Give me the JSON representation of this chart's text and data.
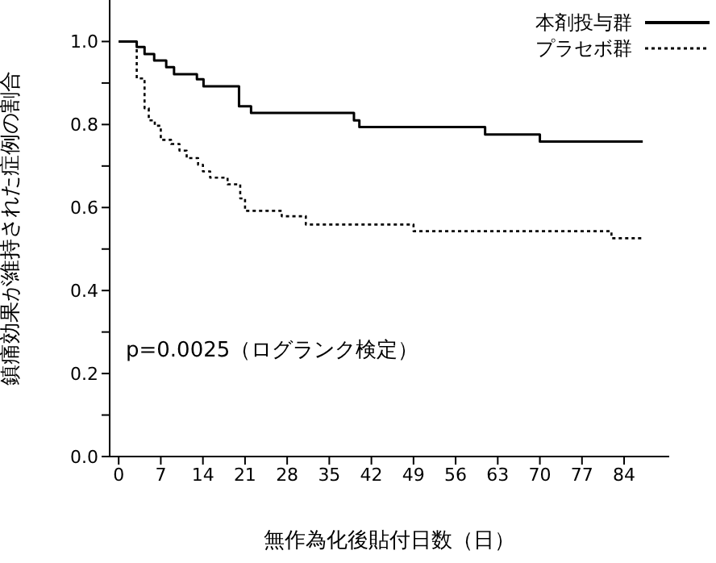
{
  "chart_data": {
    "type": "step",
    "xlabel": "無作為化後貼付日数（日）",
    "ylabel": "鎮痛効果が維持された症例の割合",
    "annotations": [
      "p=0.0025（ログランク検定）"
    ],
    "xlim": [
      -1.5,
      91.5
    ],
    "xticks": [
      0,
      7,
      14,
      21,
      28,
      35,
      42,
      49,
      56,
      63,
      70,
      77,
      84
    ],
    "ylim": [
      0,
      1.1
    ],
    "yticks": [
      {
        "value": 0,
        "label": "0.0"
      },
      {
        "value": 0.1,
        "label": null
      },
      {
        "value": 0.2,
        "label": "0.2"
      },
      {
        "value": 0.3,
        "label": null
      },
      {
        "value": 0.4,
        "label": "0.4"
      },
      {
        "value": 0.5,
        "label": null
      },
      {
        "value": 0.6,
        "label": "0.6"
      },
      {
        "value": 0.7,
        "label": null
      },
      {
        "value": 0.8,
        "label": "0.8"
      },
      {
        "value": 0.9,
        "label": null
      },
      {
        "value": 1.0,
        "label": "1.0"
      }
    ],
    "grid": false,
    "legend": "top right",
    "marker": "none",
    "series": [
      {
        "name": "本剤投与群",
        "color": "#000000",
        "line_style": "solid",
        "x": [
          0,
          3,
          4.3,
          5.9,
          7.9,
          9.2,
          13,
          14.1,
          20,
          22,
          39.1,
          40,
          60.9,
          70,
          87.1
        ],
        "values": [
          1.0,
          0.987,
          0.97,
          0.954,
          0.938,
          0.921,
          0.909,
          0.892,
          0.844,
          0.828,
          0.81,
          0.794,
          0.776,
          0.759,
          0.759
        ]
      },
      {
        "name": "プラセボ群",
        "color": "#000000",
        "line_style": "dotted",
        "x": [
          0,
          3,
          4.3,
          5,
          6,
          7,
          8.7,
          10.1,
          11.3,
          13.2,
          14,
          15.2,
          18.1,
          20.2,
          21,
          27.1,
          31.1,
          49,
          81.9,
          86.9
        ],
        "values": [
          1.0,
          0.911,
          0.839,
          0.81,
          0.797,
          0.763,
          0.753,
          0.737,
          0.719,
          0.703,
          0.687,
          0.672,
          0.656,
          0.622,
          0.592,
          0.579,
          0.559,
          0.543,
          0.526,
          0.526
        ]
      }
    ]
  }
}
